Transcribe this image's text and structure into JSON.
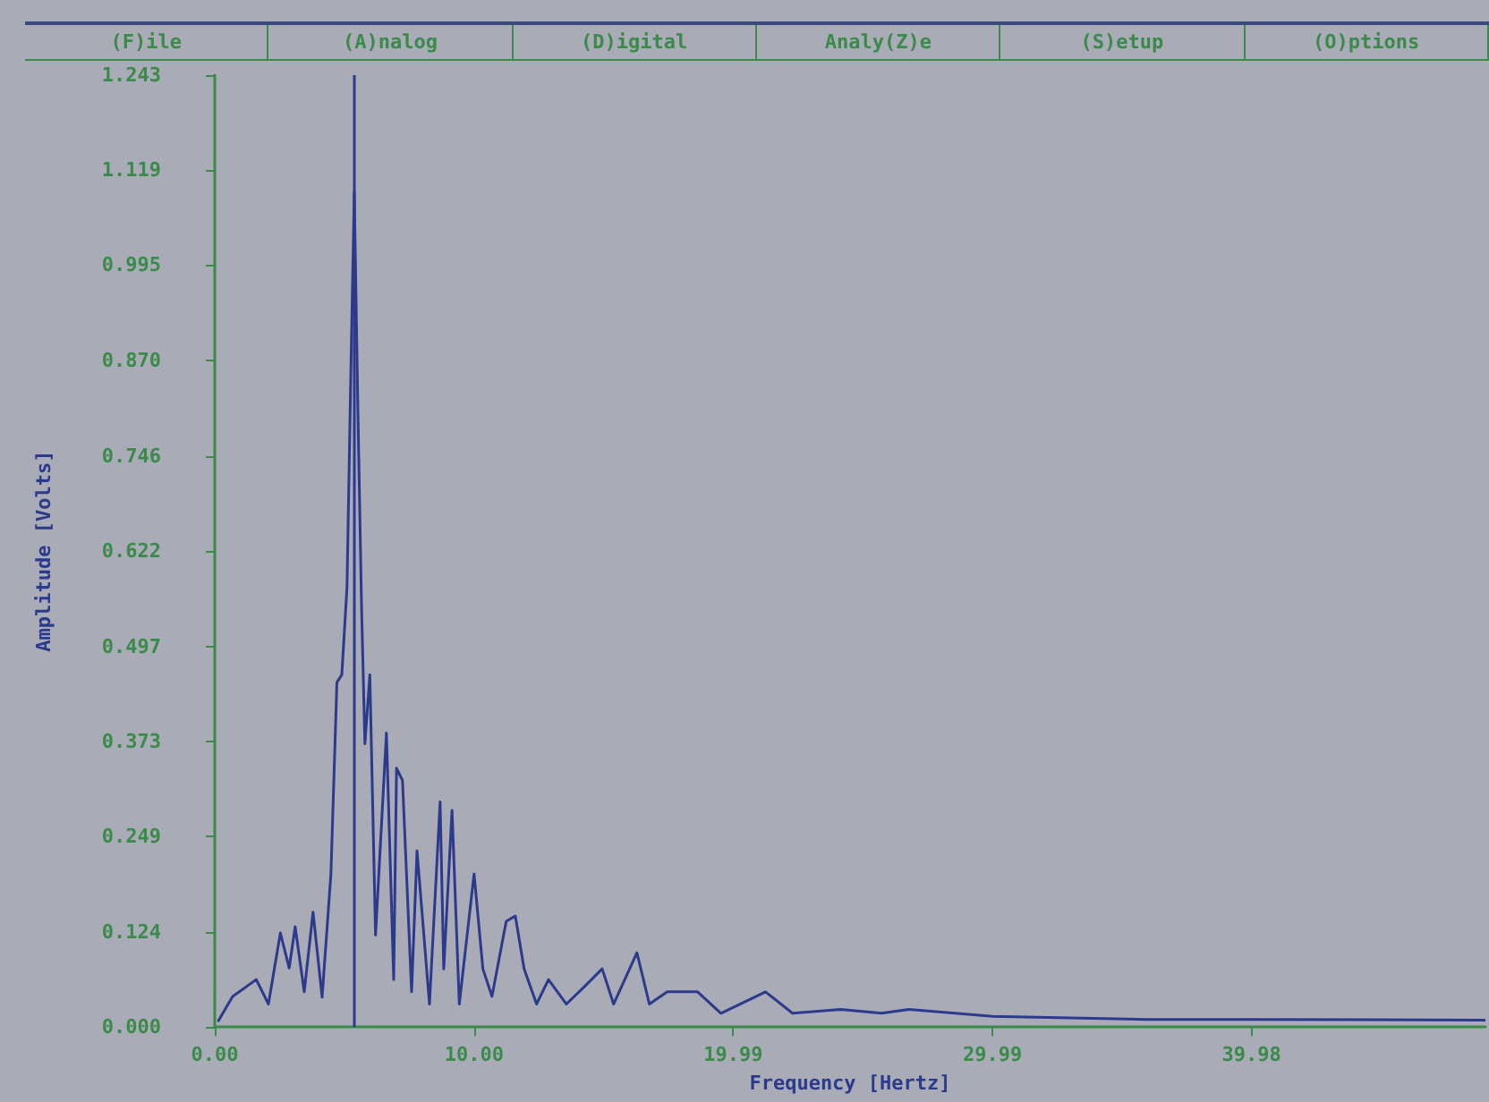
{
  "chart_data": {
    "type": "line",
    "xlabel": "Frequency [Hertz]",
    "ylabel": "Amplitude [Volts]",
    "annotations": [
      "(F)ile",
      "(A)nalog",
      "(D)igital",
      "Analy(Z)e",
      "(S)etup",
      "(O)ptions"
    ],
    "x": [
      0.12,
      0.69,
      1.6,
      2.07,
      2.53,
      2.87,
      3.1,
      3.45,
      3.79,
      4.14,
      4.48,
      4.71,
      4.9,
      5.1,
      5.24,
      5.38,
      5.52,
      5.66,
      5.79,
      5.98,
      6.2,
      6.62,
      6.9,
      7.01,
      7.24,
      7.59,
      7.8,
      8.28,
      8.69,
      8.83,
      9.15,
      9.43,
      10.0,
      10.34,
      10.69,
      11.24,
      11.59,
      11.93,
      12.41,
      12.87,
      13.56,
      14.26,
      14.94,
      15.38,
      16.28,
      16.76,
      17.45,
      18.62,
      19.52,
      21.24,
      22.28,
      24.14,
      25.72,
      26.76,
      30.0,
      35.9,
      40.0,
      49.0
    ],
    "series": [
      {
        "color": "#2c3a8c",
        "values": [
          0.007,
          0.04,
          0.062,
          0.03,
          0.123,
          0.077,
          0.131,
          0.046,
          0.15,
          0.039,
          0.2,
          0.45,
          0.46,
          0.575,
          0.84,
          1.09,
          0.805,
          0.55,
          0.37,
          0.46,
          0.12,
          0.384,
          0.062,
          0.338,
          0.322,
          0.046,
          0.23,
          0.03,
          0.294,
          0.076,
          0.283,
          0.03,
          0.2,
          0.076,
          0.04,
          0.138,
          0.145,
          0.076,
          0.03,
          0.062,
          0.03,
          0.053,
          0.076,
          0.03,
          0.097,
          0.03,
          0.046,
          0.046,
          0.018,
          0.046,
          0.018,
          0.023,
          0.018,
          0.023,
          0.014,
          0.01,
          0.01,
          0.009
        ]
      }
    ],
    "xlim": [
      0,
      49
    ],
    "xticks": [
      {
        "value": 0,
        "label": "0.00"
      },
      {
        "value": 10,
        "label": "10.00"
      },
      19.99,
      29.99,
      39.98
    ],
    "ylim": [
      0,
      1.243
    ],
    "yticks": [
      {
        "value": 0,
        "label": "0.000"
      },
      0.124,
      0.249,
      0.373,
      0.497,
      0.622,
      0.746,
      {
        "value": 0.87,
        "label": "0.870"
      },
      0.995,
      1.119,
      1.243
    ],
    "ref_lines": [
      {
        "axis": "x",
        "value": 5.38,
        "color": "#2c3a8c",
        "line_style": "solid"
      }
    ],
    "grid": false,
    "marker": "none",
    "line_style": "solid"
  }
}
